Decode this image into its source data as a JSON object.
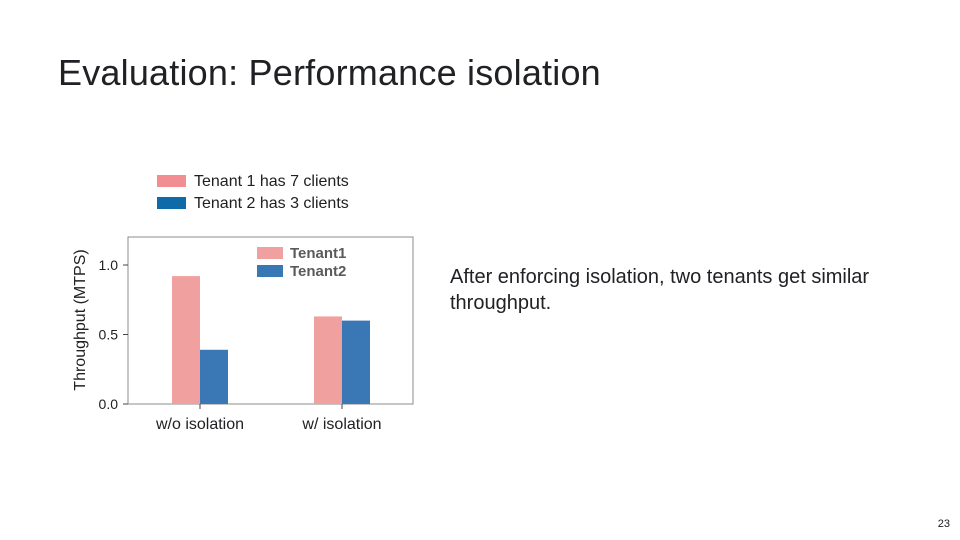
{
  "slide": {
    "title": "Evaluation: Performance isolation",
    "note": "After enforcing isolation, two tenants get similar throughput.",
    "page_number": "23"
  },
  "legend_keys": [
    {
      "label": "Tenant 1 has 7 clients",
      "color": "#f28e92"
    },
    {
      "label": "Tenant 2 has 3 clients",
      "color": "#0e6aa8"
    }
  ],
  "chart_data": {
    "type": "bar",
    "categories": [
      "w/o isolation",
      "w/ isolation"
    ],
    "series": [
      {
        "name": "Tenant1",
        "values": [
          0.92,
          0.63
        ],
        "color": "#f0a09e"
      },
      {
        "name": "Tenant2",
        "values": [
          0.39,
          0.6
        ],
        "color": "#3a78b5"
      }
    ],
    "ylabel": "Throughput (MTPS)",
    "ylim": [
      0,
      1.2
    ],
    "yticks": [
      "0.0",
      "0.5",
      "1.0"
    ],
    "legend_position": "top-right",
    "grid": false
  }
}
